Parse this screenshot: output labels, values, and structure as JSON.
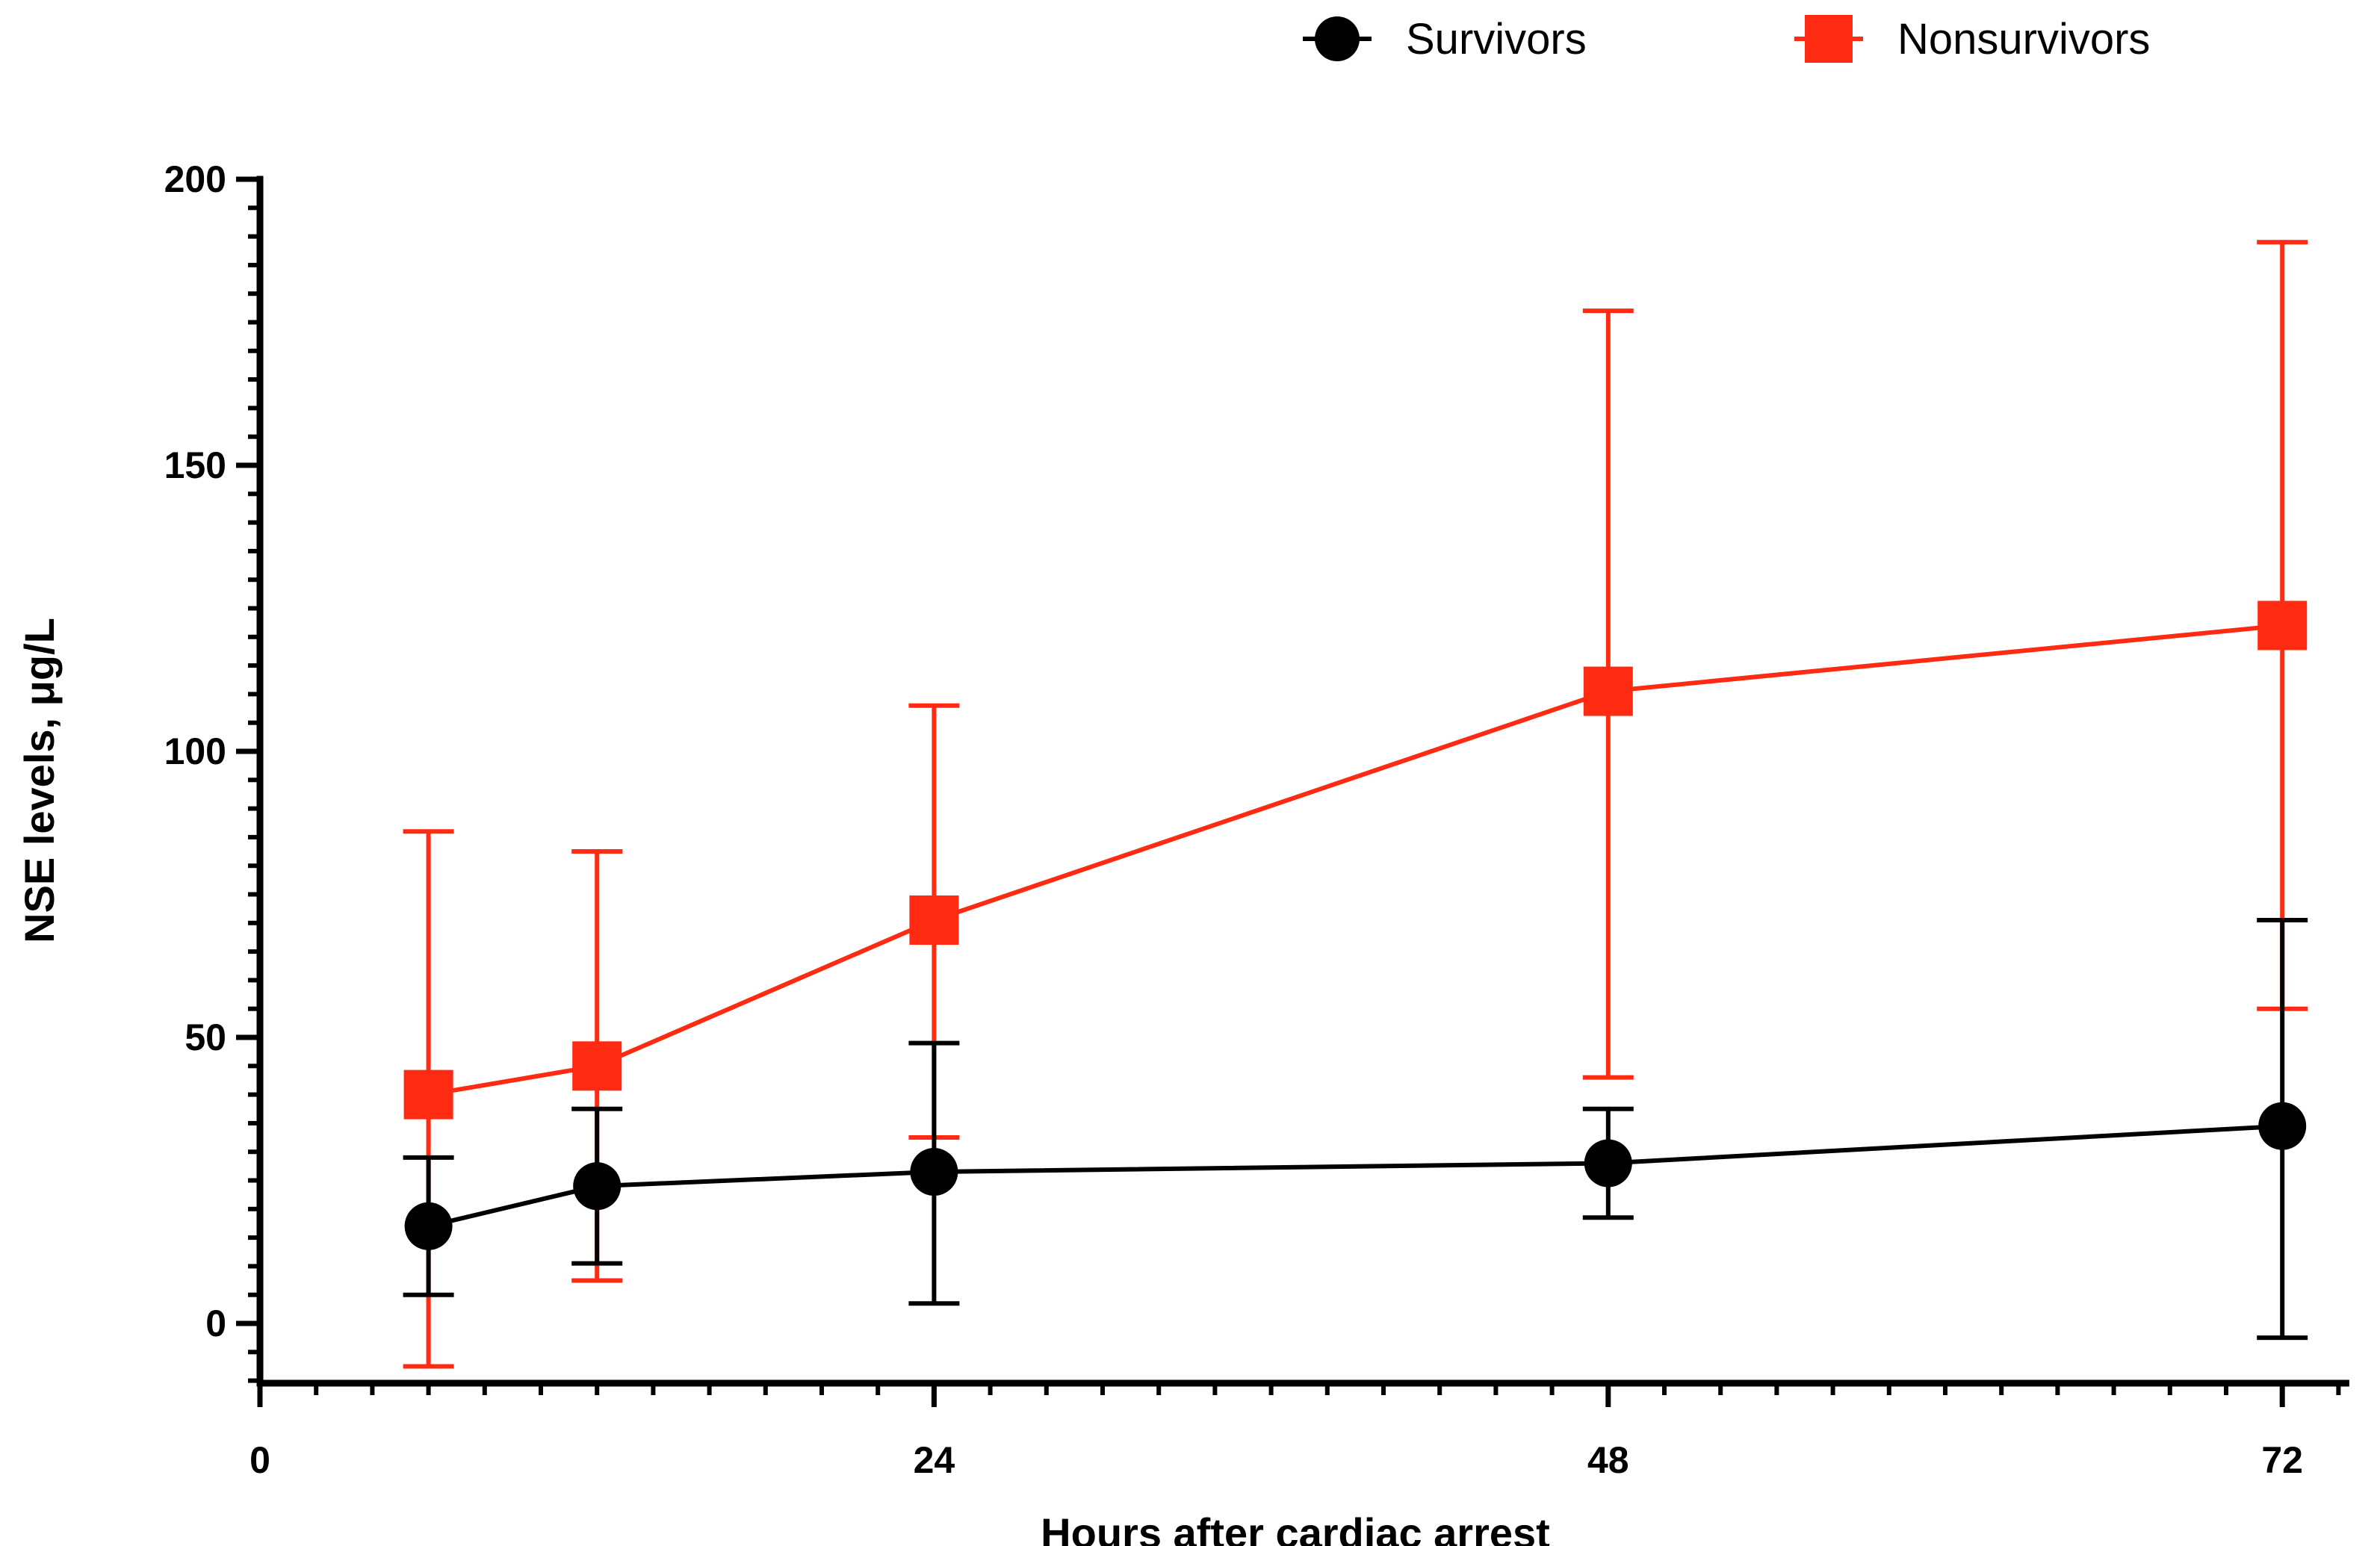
{
  "chart_data": {
    "type": "line",
    "xlabel": "Hours after cardiac arrest",
    "ylabel": "NSE levels, μg/L",
    "xlim": [
      0,
      74
    ],
    "ylim": [
      -10,
      200
    ],
    "x_ticks": [
      0,
      24,
      48,
      72
    ],
    "x_minor_step": 2,
    "y_ticks": [
      0,
      50,
      100,
      150,
      200
    ],
    "y_minor_step": 5,
    "legend_position": "top",
    "series": [
      {
        "name": "Survivors",
        "color": "#000000",
        "marker": "circle",
        "x": [
          6,
          12,
          24,
          48,
          72
        ],
        "values": [
          17,
          24,
          26.5,
          28,
          34.5
        ],
        "error_low": [
          5,
          10.5,
          3.5,
          18.5,
          -2.5
        ],
        "error_high": [
          29,
          37.5,
          49,
          37.5,
          70.5
        ]
      },
      {
        "name": "Nonsurvivors",
        "color": "#ff2a12",
        "marker": "square",
        "x": [
          6,
          12,
          24,
          48,
          72
        ],
        "values": [
          40,
          45,
          70.5,
          110.5,
          122
        ],
        "error_low": [
          -7.5,
          7.5,
          32.5,
          43,
          55
        ],
        "error_high": [
          86,
          82.5,
          108,
          177,
          189
        ]
      }
    ]
  }
}
